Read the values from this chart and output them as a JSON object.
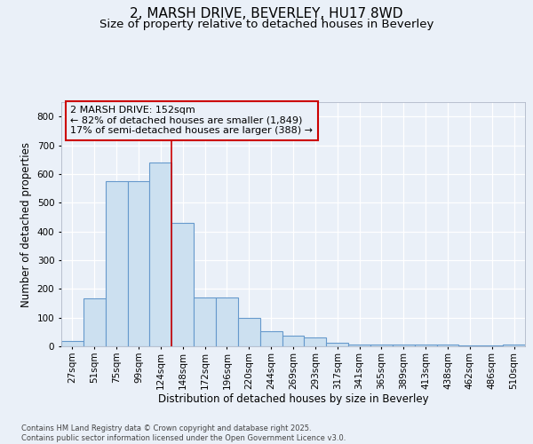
{
  "title_line1": "2, MARSH DRIVE, BEVERLEY, HU17 8WD",
  "title_line2": "Size of property relative to detached houses in Beverley",
  "xlabel": "Distribution of detached houses by size in Beverley",
  "ylabel": "Number of detached properties",
  "bar_color": "#cce0f0",
  "bar_edge_color": "#6699cc",
  "background_color": "#eaf0f8",
  "plot_bg_color": "#eaf0f8",
  "grid_color": "#ffffff",
  "categories": [
    "27sqm",
    "51sqm",
    "75sqm",
    "99sqm",
    "124sqm",
    "148sqm",
    "172sqm",
    "196sqm",
    "220sqm",
    "244sqm",
    "269sqm",
    "293sqm",
    "317sqm",
    "341sqm",
    "365sqm",
    "389sqm",
    "413sqm",
    "438sqm",
    "462sqm",
    "486sqm",
    "510sqm"
  ],
  "values": [
    20,
    168,
    575,
    575,
    640,
    430,
    170,
    170,
    100,
    53,
    38,
    32,
    12,
    5,
    5,
    5,
    5,
    5,
    2,
    2,
    5
  ],
  "ylim": [
    0,
    850
  ],
  "yticks": [
    0,
    100,
    200,
    300,
    400,
    500,
    600,
    700,
    800
  ],
  "vline_x_index": 5,
  "annotation_line1": "2 MARSH DRIVE: 152sqm",
  "annotation_line2": "← 82% of detached houses are smaller (1,849)",
  "annotation_line3": "17% of semi-detached houses are larger (388) →",
  "footer_line1": "Contains HM Land Registry data © Crown copyright and database right 2025.",
  "footer_line2": "Contains public sector information licensed under the Open Government Licence v3.0.",
  "title_fontsize": 11,
  "subtitle_fontsize": 9.5,
  "axis_label_fontsize": 8.5,
  "tick_fontsize": 7.5,
  "annotation_fontsize": 8,
  "footer_fontsize": 6
}
